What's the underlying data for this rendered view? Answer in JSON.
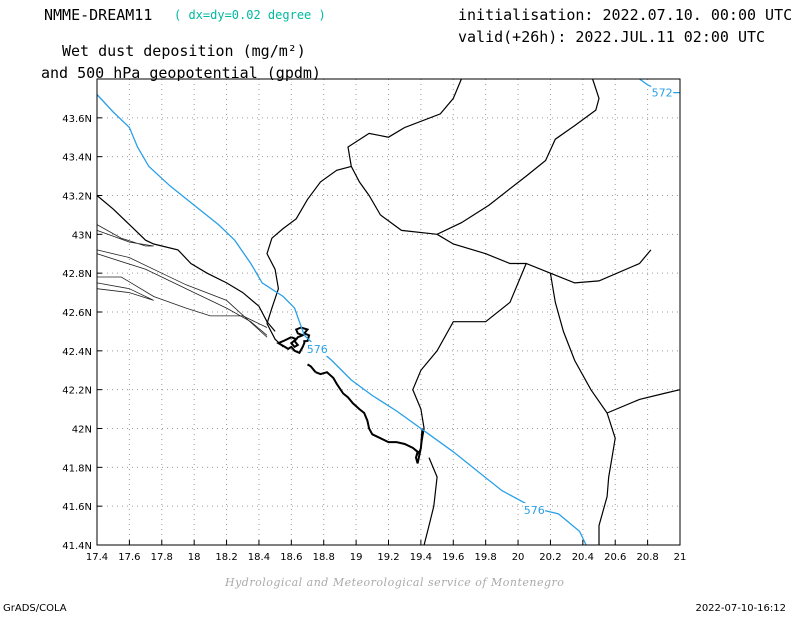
{
  "titles": {
    "model": "NMME-DREAM11",
    "resolution": "( dx=dy=0.02 degree )",
    "variable_line1": "Wet dust deposition (mg/m²)",
    "variable_line2": "and 500 hPa geopotential (gpdm)",
    "initialisation": "initialisation: 2022.07.10. 00:00 UTC",
    "valid": "valid(+26h): 2022.JUL.11 02:00 UTC"
  },
  "credit": "Hydrological and Meteorological service of Montenegro",
  "footer": {
    "left": "GrADS/COLA",
    "right": "2022-07-10-16:12"
  },
  "map": {
    "lon_range": [
      17.4,
      21.0
    ],
    "lat_range": [
      41.4,
      43.8
    ],
    "lon_ticks": [
      17.4,
      17.6,
      17.8,
      18,
      18.2,
      18.4,
      18.6,
      18.8,
      19,
      19.2,
      19.4,
      19.6,
      19.8,
      20,
      20.2,
      20.4,
      20.6,
      20.8,
      21
    ],
    "lon_tick_labels": [
      "17.4",
      "17.6",
      "17.8",
      "18",
      "18.2",
      "18.4",
      "18.6",
      "18.8",
      "19",
      "19.2",
      "19.4",
      "19.6",
      "19.8",
      "20",
      "20.2",
      "20.4",
      "20.6",
      "20.8",
      "21"
    ],
    "lat_ticks": [
      41.4,
      41.6,
      41.8,
      42.0,
      42.2,
      42.4,
      42.6,
      42.8,
      43.0,
      43.2,
      43.4,
      43.6
    ],
    "lat_tick_labels": [
      "41.4N",
      "41.6N",
      "41.8N",
      "42N",
      "42.2N",
      "42.4N",
      "42.6N",
      "42.8N",
      "43N",
      "43.2N",
      "43.4N",
      "43.6N"
    ],
    "grid": true,
    "contour_color": "#2aa0e6",
    "contours": [
      {
        "label": "572",
        "points": [
          [
            20.75,
            43.8
          ],
          [
            20.8,
            43.77
          ],
          [
            20.85,
            43.75
          ],
          [
            20.9,
            43.74
          ],
          [
            20.95,
            43.73
          ],
          [
            21.0,
            43.73
          ]
        ],
        "label_at": [
          20.89,
          43.73
        ]
      },
      {
        "label": "576",
        "points": [
          [
            17.4,
            43.72
          ],
          [
            17.5,
            43.63
          ],
          [
            17.6,
            43.55
          ],
          [
            17.65,
            43.45
          ],
          [
            17.72,
            43.35
          ],
          [
            17.85,
            43.25
          ],
          [
            18.0,
            43.15
          ],
          [
            18.15,
            43.05
          ],
          [
            18.25,
            42.97
          ],
          [
            18.35,
            42.85
          ],
          [
            18.42,
            42.75
          ],
          [
            18.55,
            42.68
          ],
          [
            18.62,
            42.62
          ],
          [
            18.65,
            42.55
          ],
          [
            18.68,
            42.48
          ],
          [
            18.73,
            42.44
          ],
          [
            18.85,
            42.35
          ],
          [
            18.97,
            42.25
          ],
          [
            19.1,
            42.17
          ],
          [
            19.25,
            42.09
          ],
          [
            19.45,
            41.97
          ],
          [
            19.6,
            41.88
          ],
          [
            19.75,
            41.78
          ],
          [
            19.9,
            41.68
          ],
          [
            20.1,
            41.59
          ],
          [
            20.25,
            41.56
          ],
          [
            20.38,
            41.47
          ],
          [
            20.42,
            41.4
          ]
        ],
        "label_at": [
          18.76,
          42.41
        ],
        "label2_at": [
          20.1,
          41.58
        ]
      }
    ],
    "borders": [
      [
        [
          20.46,
          43.8
        ],
        [
          20.5,
          43.7
        ],
        [
          20.48,
          43.64
        ],
        [
          20.35,
          43.56
        ],
        [
          20.23,
          43.49
        ],
        [
          20.17,
          43.38
        ],
        [
          20.05,
          43.3
        ],
        [
          19.82,
          43.15
        ],
        [
          19.65,
          43.06
        ],
        [
          19.5,
          43.0
        ],
        [
          19.28,
          43.02
        ],
        [
          19.15,
          43.1
        ],
        [
          19.08,
          43.2
        ],
        [
          19.02,
          43.27
        ],
        [
          18.97,
          43.35
        ],
        [
          18.95,
          43.45
        ],
        [
          19.08,
          43.52
        ],
        [
          19.2,
          43.5
        ],
        [
          19.3,
          43.55
        ],
        [
          19.52,
          43.62
        ],
        [
          19.6,
          43.7
        ],
        [
          19.65,
          43.8
        ]
      ],
      [
        [
          18.97,
          43.35
        ],
        [
          18.88,
          43.33
        ],
        [
          18.78,
          43.27
        ],
        [
          18.7,
          43.18
        ],
        [
          18.63,
          43.08
        ],
        [
          18.55,
          43.03
        ],
        [
          18.48,
          42.98
        ],
        [
          18.45,
          42.9
        ],
        [
          18.5,
          42.82
        ],
        [
          18.52,
          42.72
        ],
        [
          18.48,
          42.62
        ],
        [
          18.45,
          42.54
        ],
        [
          18.5,
          42.46
        ],
        [
          18.55,
          42.42
        ]
      ],
      [
        [
          17.4,
          43.2
        ],
        [
          17.5,
          43.13
        ],
        [
          17.6,
          43.05
        ],
        [
          17.7,
          42.97
        ],
        [
          17.75,
          42.95
        ],
        [
          17.9,
          42.92
        ],
        [
          17.98,
          42.85
        ],
        [
          18.08,
          42.8
        ],
        [
          18.2,
          42.75
        ],
        [
          18.3,
          42.7
        ],
        [
          18.4,
          42.63
        ],
        [
          18.45,
          42.55
        ],
        [
          18.5,
          42.5
        ]
      ],
      [
        [
          19.5,
          43.0
        ],
        [
          19.6,
          42.95
        ],
        [
          19.8,
          42.9
        ],
        [
          19.95,
          42.85
        ],
        [
          20.05,
          42.85
        ],
        [
          20.2,
          42.8
        ],
        [
          20.35,
          42.75
        ],
        [
          20.5,
          42.76
        ],
        [
          20.75,
          42.85
        ],
        [
          20.82,
          42.92
        ]
      ],
      [
        [
          20.05,
          42.85
        ],
        [
          19.95,
          42.65
        ],
        [
          19.8,
          42.55
        ],
        [
          19.6,
          42.55
        ],
        [
          19.5,
          42.4
        ],
        [
          19.4,
          42.3
        ],
        [
          19.35,
          42.2
        ],
        [
          19.4,
          42.1
        ],
        [
          19.42,
          42.0
        ]
      ],
      [
        [
          20.2,
          42.8
        ],
        [
          20.23,
          42.65
        ],
        [
          20.28,
          42.5
        ],
        [
          20.35,
          42.35
        ],
        [
          20.45,
          42.2
        ],
        [
          20.55,
          42.08
        ],
        [
          20.6,
          41.95
        ],
        [
          20.58,
          41.85
        ],
        [
          20.56,
          41.75
        ],
        [
          20.55,
          41.65
        ],
        [
          20.5,
          41.5
        ],
        [
          20.5,
          41.4
        ]
      ],
      [
        [
          20.55,
          42.08
        ],
        [
          20.75,
          42.15
        ],
        [
          20.9,
          42.18
        ],
        [
          21.0,
          42.2
        ]
      ],
      [
        [
          19.42,
          42.0
        ],
        [
          19.4,
          41.9
        ],
        [
          19.37,
          41.85
        ]
      ],
      [
        [
          19.45,
          41.85
        ],
        [
          19.5,
          41.75
        ],
        [
          19.48,
          41.6
        ],
        [
          19.45,
          41.5
        ],
        [
          19.42,
          41.4
        ]
      ]
    ],
    "coast_thin": [
      [
        [
          17.4,
          42.78
        ],
        [
          17.55,
          42.78
        ],
        [
          17.75,
          42.68
        ],
        [
          17.95,
          42.62
        ],
        [
          18.1,
          42.58
        ],
        [
          18.3,
          42.58
        ],
        [
          18.45,
          42.52
        ]
      ],
      [
        [
          17.4,
          42.9
        ],
        [
          17.7,
          42.82
        ],
        [
          18.0,
          42.7
        ],
        [
          18.2,
          42.62
        ],
        [
          18.35,
          42.55
        ],
        [
          18.45,
          42.48
        ]
      ],
      [
        [
          17.4,
          42.92
        ],
        [
          17.6,
          42.88
        ],
        [
          17.8,
          42.8
        ],
        [
          17.95,
          42.74
        ],
        [
          18.2,
          42.66
        ],
        [
          18.45,
          42.47
        ]
      ]
    ],
    "islands": [
      [
        [
          17.4,
          43.05
        ],
        [
          17.55,
          42.98
        ],
        [
          17.7,
          42.94
        ],
        [
          17.75,
          42.94
        ],
        [
          17.6,
          42.96
        ],
        [
          17.4,
          43.02
        ]
      ],
      [
        [
          17.4,
          42.75
        ],
        [
          17.6,
          42.72
        ],
        [
          17.75,
          42.66
        ],
        [
          17.6,
          42.7
        ],
        [
          17.4,
          42.72
        ]
      ]
    ],
    "coast_bold": [
      [
        [
          18.6,
          42.47
        ],
        [
          18.55,
          42.45
        ],
        [
          18.52,
          42.44
        ],
        [
          18.56,
          42.42
        ],
        [
          18.58,
          42.41
        ],
        [
          18.6,
          42.42
        ],
        [
          18.62,
          42.4
        ],
        [
          18.65,
          42.39
        ],
        [
          18.67,
          42.42
        ],
        [
          18.68,
          42.44
        ],
        [
          18.68,
          42.45
        ],
        [
          18.7,
          42.45
        ],
        [
          18.71,
          42.48
        ],
        [
          18.68,
          42.49
        ],
        [
          18.7,
          42.51
        ],
        [
          18.66,
          42.52
        ],
        [
          18.63,
          42.51
        ],
        [
          18.64,
          42.49
        ],
        [
          18.67,
          42.48
        ],
        [
          18.64,
          42.47
        ],
        [
          18.62,
          42.45
        ],
        [
          18.64,
          42.43
        ],
        [
          18.62,
          42.42
        ],
        [
          18.6,
          42.44
        ],
        [
          18.63,
          42.46
        ],
        [
          18.6,
          42.47
        ]
      ],
      [
        [
          18.75,
          42.29
        ],
        [
          18.78,
          42.28
        ],
        [
          18.82,
          42.29
        ],
        [
          18.86,
          42.26
        ],
        [
          18.88,
          42.23
        ],
        [
          18.92,
          42.18
        ],
        [
          18.95,
          42.16
        ],
        [
          18.98,
          42.13
        ],
        [
          19.02,
          42.1
        ],
        [
          19.05,
          42.08
        ],
        [
          19.07,
          42.04
        ],
        [
          19.08,
          42.0
        ],
        [
          19.1,
          41.97
        ],
        [
          19.15,
          41.95
        ],
        [
          19.2,
          41.93
        ],
        [
          19.25,
          41.93
        ],
        [
          19.3,
          41.92
        ],
        [
          19.35,
          41.9
        ],
        [
          19.38,
          41.88
        ],
        [
          19.37,
          41.85
        ],
        [
          19.38,
          41.82
        ],
        [
          19.4,
          41.9
        ],
        [
          19.41,
          42.0
        ]
      ],
      [
        [
          18.75,
          42.29
        ],
        [
          18.72,
          42.32
        ],
        [
          18.7,
          42.33
        ]
      ]
    ]
  }
}
